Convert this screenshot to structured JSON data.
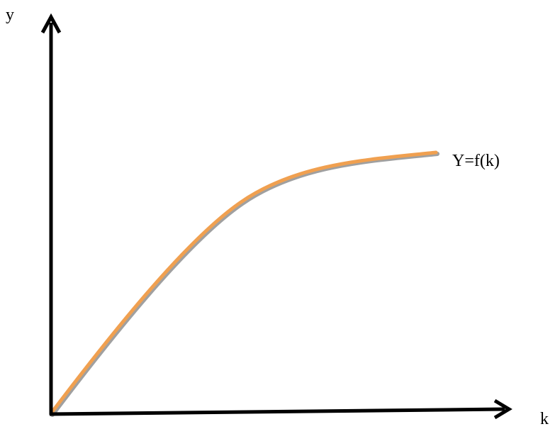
{
  "diagram": {
    "y_axis_label": "y",
    "x_axis_label": "k",
    "curve_label": "Y=f(k)"
  }
}
